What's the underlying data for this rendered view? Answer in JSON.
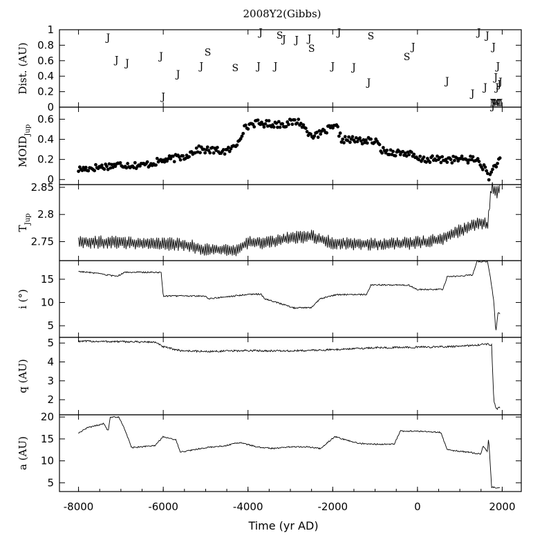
{
  "title": "2008Y2(Gibbs)",
  "xlabel": "Time (yr AD)",
  "x_ticks": [
    "-8000",
    "-6000",
    "-4000",
    "-2000",
    "0",
    "2000"
  ],
  "chart_data": [
    {
      "type": "scatter",
      "ylabel": "Dist. (AU)",
      "ylim": [
        0,
        1
      ],
      "y_ticks": [
        "0",
        "0.2",
        "0.4",
        "0.6",
        "0.8",
        "1"
      ],
      "note": "Close encounters; marker letter = planet",
      "points": [
        {
          "x": -7300,
          "y": 0.9,
          "label": "J"
        },
        {
          "x": -7100,
          "y": 0.61,
          "label": "J"
        },
        {
          "x": -6850,
          "y": 0.57,
          "label": "J"
        },
        {
          "x": -6050,
          "y": 0.66,
          "label": "J"
        },
        {
          "x": -6000,
          "y": 0.14,
          "label": "J"
        },
        {
          "x": -5650,
          "y": 0.43,
          "label": "J"
        },
        {
          "x": -5100,
          "y": 0.53,
          "label": "J"
        },
        {
          "x": -4950,
          "y": 0.71,
          "label": "S"
        },
        {
          "x": -4300,
          "y": 0.51,
          "label": "S"
        },
        {
          "x": -3750,
          "y": 0.53,
          "label": "J"
        },
        {
          "x": -3700,
          "y": 0.97,
          "label": "J"
        },
        {
          "x": -3350,
          "y": 0.53,
          "label": "J"
        },
        {
          "x": -3250,
          "y": 0.93,
          "label": "S"
        },
        {
          "x": -3150,
          "y": 0.88,
          "label": "J"
        },
        {
          "x": -2850,
          "y": 0.87,
          "label": "J"
        },
        {
          "x": -2550,
          "y": 0.89,
          "label": "J"
        },
        {
          "x": -2500,
          "y": 0.76,
          "label": "S"
        },
        {
          "x": -2000,
          "y": 0.53,
          "label": "J"
        },
        {
          "x": -1850,
          "y": 0.97,
          "label": "J"
        },
        {
          "x": -1500,
          "y": 0.52,
          "label": "J"
        },
        {
          "x": -1150,
          "y": 0.32,
          "label": "J"
        },
        {
          "x": -1100,
          "y": 0.92,
          "label": "S"
        },
        {
          "x": -250,
          "y": 0.65,
          "label": "S"
        },
        {
          "x": -100,
          "y": 0.78,
          "label": "J"
        },
        {
          "x": 700,
          "y": 0.34,
          "label": "J"
        },
        {
          "x": 1300,
          "y": 0.18,
          "label": "J"
        },
        {
          "x": 1450,
          "y": 0.97,
          "label": "J"
        },
        {
          "x": 1600,
          "y": 0.26,
          "label": "J"
        },
        {
          "x": 1650,
          "y": 0.93,
          "label": "J"
        },
        {
          "x": 1800,
          "y": 0.78,
          "label": "J"
        },
        {
          "x": 1850,
          "y": 0.39,
          "label": "J"
        },
        {
          "x": 1880,
          "y": 0.26,
          "label": "J"
        },
        {
          "x": 1900,
          "y": 0.53,
          "label": "J"
        },
        {
          "x": 1930,
          "y": 0.3,
          "label": "J"
        },
        {
          "x": 1960,
          "y": 0.33,
          "label": "J"
        },
        {
          "x": 1780,
          "y": 0.02,
          "label": "J"
        },
        {
          "x": 1820,
          "y": 0.06,
          "label": "M"
        },
        {
          "x": 1860,
          "y": 0.06,
          "label": "M"
        },
        {
          "x": 1900,
          "y": 0.06,
          "label": "M"
        }
      ]
    },
    {
      "type": "scatter",
      "ylabel": "MOID",
      "ylabel_sub": "Jup",
      "ylim": [
        -0.05,
        0.72
      ],
      "y_ticks": [
        "0",
        "0.2",
        "0.4",
        "0.6"
      ],
      "trend": [
        {
          "x": -8000,
          "y": 0.1
        },
        {
          "x": -7000,
          "y": 0.15
        },
        {
          "x": -6500,
          "y": 0.14
        },
        {
          "x": -6000,
          "y": 0.19
        },
        {
          "x": -5500,
          "y": 0.23
        },
        {
          "x": -5200,
          "y": 0.3
        },
        {
          "x": -4500,
          "y": 0.28
        },
        {
          "x": -4300,
          "y": 0.33
        },
        {
          "x": -4100,
          "y": 0.5
        },
        {
          "x": -3900,
          "y": 0.56
        },
        {
          "x": -3200,
          "y": 0.55
        },
        {
          "x": -2800,
          "y": 0.58
        },
        {
          "x": -2600,
          "y": 0.48
        },
        {
          "x": -2400,
          "y": 0.43
        },
        {
          "x": -2100,
          "y": 0.5
        },
        {
          "x": -1900,
          "y": 0.52
        },
        {
          "x": -1800,
          "y": 0.4
        },
        {
          "x": -1000,
          "y": 0.38
        },
        {
          "x": -800,
          "y": 0.28
        },
        {
          "x": -200,
          "y": 0.26
        },
        {
          "x": 0,
          "y": 0.2
        },
        {
          "x": 1000,
          "y": 0.2
        },
        {
          "x": 1400,
          "y": 0.2
        },
        {
          "x": 1600,
          "y": 0.1
        },
        {
          "x": 1700,
          "y": 0.02
        },
        {
          "x": 1800,
          "y": 0.12
        },
        {
          "x": 1900,
          "y": 0.18
        }
      ]
    },
    {
      "type": "line",
      "ylabel": "T",
      "ylabel_sub": "Jup",
      "ylim": [
        2.715,
        2.855
      ],
      "y_ticks": [
        "2.75",
        "2.8",
        "2.85"
      ],
      "trend": [
        {
          "x": -8000,
          "y": 2.75
        },
        {
          "x": -5500,
          "y": 2.745
        },
        {
          "x": -5000,
          "y": 2.735
        },
        {
          "x": -4300,
          "y": 2.735
        },
        {
          "x": -4000,
          "y": 2.748
        },
        {
          "x": -3500,
          "y": 2.748
        },
        {
          "x": -3000,
          "y": 2.758
        },
        {
          "x": -2500,
          "y": 2.76
        },
        {
          "x": -2000,
          "y": 2.748
        },
        {
          "x": -1000,
          "y": 2.745
        },
        {
          "x": 0,
          "y": 2.748
        },
        {
          "x": 500,
          "y": 2.753
        },
        {
          "x": 1000,
          "y": 2.77
        },
        {
          "x": 1500,
          "y": 2.785
        },
        {
          "x": 1650,
          "y": 2.78
        },
        {
          "x": 1750,
          "y": 2.85
        },
        {
          "x": 1850,
          "y": 2.84
        },
        {
          "x": 2000,
          "y": 2.85
        }
      ]
    },
    {
      "type": "line",
      "ylabel": "i (°)",
      "ylim": [
        2.5,
        19
      ],
      "y_ticks": [
        "5",
        "10",
        "15"
      ],
      "trend": [
        {
          "x": -8000,
          "y": 16.7
        },
        {
          "x": -7600,
          "y": 16.3
        },
        {
          "x": -7100,
          "y": 15.6
        },
        {
          "x": -6900,
          "y": 16.5
        },
        {
          "x": -6050,
          "y": 16.5
        },
        {
          "x": -6000,
          "y": 11.4
        },
        {
          "x": -5000,
          "y": 11.4
        },
        {
          "x": -4950,
          "y": 10.8
        },
        {
          "x": -4400,
          "y": 11.3
        },
        {
          "x": -4000,
          "y": 11.8
        },
        {
          "x": -3700,
          "y": 11.8
        },
        {
          "x": -3600,
          "y": 10.8
        },
        {
          "x": -3250,
          "y": 9.8
        },
        {
          "x": -2900,
          "y": 8.8
        },
        {
          "x": -2500,
          "y": 8.9
        },
        {
          "x": -2300,
          "y": 10.8
        },
        {
          "x": -1900,
          "y": 11.7
        },
        {
          "x": -1200,
          "y": 11.7
        },
        {
          "x": -1100,
          "y": 13.8
        },
        {
          "x": -200,
          "y": 13.7
        },
        {
          "x": 0,
          "y": 12.8
        },
        {
          "x": 600,
          "y": 12.8
        },
        {
          "x": 700,
          "y": 15.5
        },
        {
          "x": 1300,
          "y": 15.9
        },
        {
          "x": 1400,
          "y": 18.8
        },
        {
          "x": 1650,
          "y": 18.8
        },
        {
          "x": 1700,
          "y": 16.5
        },
        {
          "x": 1800,
          "y": 10.5
        },
        {
          "x": 1850,
          "y": 3.5
        },
        {
          "x": 1900,
          "y": 7.8
        },
        {
          "x": 1950,
          "y": 7.5
        }
      ]
    },
    {
      "type": "line",
      "ylabel": "q (AU)",
      "ylim": [
        1.2,
        5.3
      ],
      "y_ticks": [
        "2",
        "3",
        "4",
        "5"
      ],
      "trend": [
        {
          "x": -8000,
          "y": 5.1
        },
        {
          "x": -6200,
          "y": 5.05
        },
        {
          "x": -6000,
          "y": 4.8
        },
        {
          "x": -5600,
          "y": 4.6
        },
        {
          "x": -5000,
          "y": 4.55
        },
        {
          "x": -4000,
          "y": 4.6
        },
        {
          "x": -3000,
          "y": 4.58
        },
        {
          "x": -2000,
          "y": 4.65
        },
        {
          "x": -1000,
          "y": 4.75
        },
        {
          "x": 0,
          "y": 4.78
        },
        {
          "x": 1000,
          "y": 4.82
        },
        {
          "x": 1650,
          "y": 4.95
        },
        {
          "x": 1750,
          "y": 4.9
        },
        {
          "x": 1800,
          "y": 2.0
        },
        {
          "x": 1850,
          "y": 1.5
        },
        {
          "x": 1950,
          "y": 1.6
        }
      ]
    },
    {
      "type": "line",
      "ylabel": "a (AU)",
      "ylim": [
        3,
        20.5
      ],
      "y_ticks": [
        "5",
        "10",
        "15",
        "20"
      ],
      "trend": [
        {
          "x": -8000,
          "y": 16.3
        },
        {
          "x": -7800,
          "y": 17.5
        },
        {
          "x": -7600,
          "y": 18.0
        },
        {
          "x": -7400,
          "y": 18.5
        },
        {
          "x": -7300,
          "y": 16.8
        },
        {
          "x": -7250,
          "y": 20.0
        },
        {
          "x": -7050,
          "y": 20.0
        },
        {
          "x": -6900,
          "y": 17.0
        },
        {
          "x": -6750,
          "y": 13.0
        },
        {
          "x": -6200,
          "y": 13.5
        },
        {
          "x": -6000,
          "y": 15.5
        },
        {
          "x": -5700,
          "y": 14.8
        },
        {
          "x": -5600,
          "y": 12.0
        },
        {
          "x": -5000,
          "y": 13.0
        },
        {
          "x": -4500,
          "y": 13.5
        },
        {
          "x": -4200,
          "y": 14.2
        },
        {
          "x": -3800,
          "y": 13.2
        },
        {
          "x": -3400,
          "y": 12.8
        },
        {
          "x": -3000,
          "y": 13.2
        },
        {
          "x": -2600,
          "y": 13.2
        },
        {
          "x": -2300,
          "y": 12.8
        },
        {
          "x": -1950,
          "y": 15.5
        },
        {
          "x": -1400,
          "y": 14.0
        },
        {
          "x": -1000,
          "y": 13.8
        },
        {
          "x": -550,
          "y": 13.8
        },
        {
          "x": -400,
          "y": 16.8
        },
        {
          "x": 0,
          "y": 16.8
        },
        {
          "x": 550,
          "y": 16.5
        },
        {
          "x": 700,
          "y": 12.5
        },
        {
          "x": 1200,
          "y": 12.0
        },
        {
          "x": 1500,
          "y": 11.5
        },
        {
          "x": 1550,
          "y": 13.5
        },
        {
          "x": 1650,
          "y": 12.0
        },
        {
          "x": 1680,
          "y": 15.2
        },
        {
          "x": 1700,
          "y": 12.0
        },
        {
          "x": 1750,
          "y": 4.0
        },
        {
          "x": 1950,
          "y": 3.8
        }
      ]
    }
  ]
}
